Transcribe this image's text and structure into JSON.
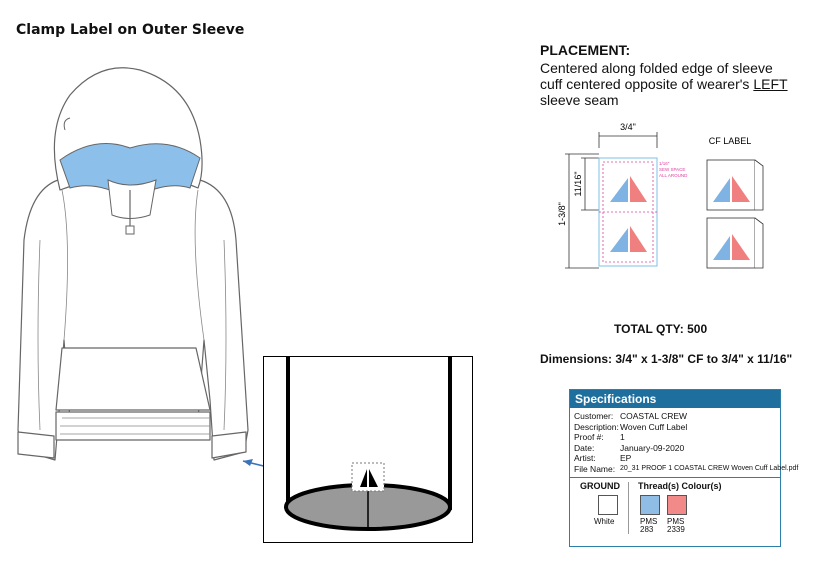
{
  "title": "Clamp Label on Outer Sleeve",
  "placement": {
    "heading": "PLACEMENT:",
    "line1": "Centered along folded edge of sleeve",
    "line2_pre": "cuff centered opposite of wearer's ",
    "line2_emph": "LEFT",
    "line3": "sleeve seam"
  },
  "label_diagram": {
    "width_dim": "3/4\"",
    "half_height_dim": "11/16\"",
    "full_height_dim": "1-3/8\"",
    "sew_note_1": "1/16\"",
    "sew_note_2": "SEW SPACE",
    "sew_note_3": "ALL AROUND",
    "cf_label": "CF LABEL"
  },
  "total_qty": "TOTAL QTY: 500",
  "dimensions": "Dimensions:  3/4\" x 1-3/8\" CF to 3/4\" x 11/16\"",
  "specifications": {
    "heading": "Specifications",
    "rows": [
      {
        "key": "Customer:",
        "value": "COASTAL CREW"
      },
      {
        "key": "Description:",
        "value": "Woven Cuff Label"
      },
      {
        "key": "Proof #:",
        "value": "1"
      },
      {
        "key": "Date:",
        "value": "January-09-2020"
      },
      {
        "key": "Artist:",
        "value": "EP"
      },
      {
        "key": "File Name:",
        "value": "20_31 PROOF 1 COASTAL CREW  Woven Cuff Label.pdf"
      }
    ],
    "ground_label": "GROUND",
    "ground_color": "White",
    "thread_label": "Thread(s) Colour(s)",
    "threads": [
      {
        "line1": "PMS",
        "line2": "283",
        "hex": "#8fbde6"
      },
      {
        "line1": "PMS",
        "line2": "2339",
        "hex": "#f28a8a"
      }
    ]
  },
  "colors": {
    "hood_lining": "#8cc0ea",
    "accent": "#1f6f9e",
    "logo_blue": "#7fb3e3",
    "logo_red": "#f08080"
  }
}
